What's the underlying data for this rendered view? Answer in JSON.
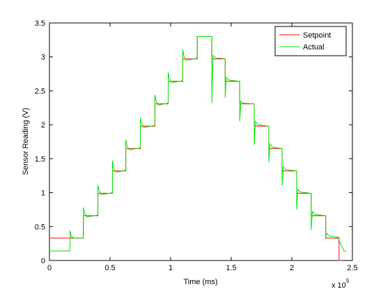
{
  "chart_data": {
    "type": "line",
    "xlabel": "Time (ms)",
    "ylabel": "Sensor Reading (V)",
    "x_exponent_base": "x 10",
    "x_exponent": "5",
    "xlim": [
      0,
      250000
    ],
    "xticks": [
      0,
      {
        "value": 50000,
        "label": "0.5"
      },
      {
        "value": 100000,
        "label": "1"
      },
      {
        "value": 150000,
        "label": "1.5"
      },
      {
        "value": 200000,
        "label": "2"
      },
      {
        "value": 250000,
        "label": "2.5"
      }
    ],
    "ylim": [
      0,
      3.5
    ],
    "yticks": [
      0,
      0.5,
      1,
      1.5,
      2,
      2.5,
      3,
      3.5
    ],
    "grid": false,
    "legend": "upper-right",
    "series": [
      {
        "name": "Setpoint",
        "color": "#ff0000",
        "x": [
          0,
          28000,
          28000,
          40000,
          40000,
          52000,
          52000,
          63000,
          63000,
          75000,
          75000,
          87000,
          87000,
          98000,
          98000,
          110000,
          110000,
          122000,
          122000,
          134000,
          134000,
          145000,
          145000,
          157000,
          157000,
          169000,
          169000,
          181000,
          181000,
          192000,
          192000,
          204000,
          204000,
          216000,
          216000,
          228000,
          228000,
          239000,
          239000,
          241000
        ],
        "values": [
          0.33,
          0.33,
          0.66,
          0.66,
          0.99,
          0.99,
          1.32,
          1.32,
          1.65,
          1.65,
          1.98,
          1.98,
          2.31,
          2.31,
          2.64,
          2.64,
          2.97,
          2.97,
          3.3,
          3.3,
          2.97,
          2.97,
          2.64,
          2.64,
          2.31,
          2.31,
          1.98,
          1.98,
          1.65,
          1.65,
          1.32,
          1.32,
          0.99,
          0.99,
          0.66,
          0.66,
          0.33,
          0.33,
          0,
          0
        ]
      },
      {
        "name": "Actual",
        "color": "#00e600",
        "x": [
          0,
          17000,
          17000,
          18000,
          20000,
          28000,
          28000,
          29000,
          31000,
          40000,
          40000,
          41000,
          43000,
          52000,
          52000,
          53000,
          55000,
          63000,
          63000,
          64000,
          66000,
          75000,
          75000,
          76000,
          78000,
          87000,
          87000,
          88000,
          90000,
          98000,
          98000,
          99000,
          101000,
          110000,
          110000,
          111000,
          113000,
          122000,
          122000,
          134000,
          134000,
          135000,
          137000,
          145000,
          145000,
          146000,
          148000,
          157000,
          157000,
          158000,
          160000,
          169000,
          169000,
          170000,
          172000,
          181000,
          181000,
          182000,
          184000,
          192000,
          192000,
          193000,
          195000,
          204000,
          204000,
          205000,
          207000,
          216000,
          216000,
          217000,
          219000,
          228000,
          228000,
          229000,
          231000,
          239000,
          239000,
          243000,
          245000
        ],
        "values": [
          0.14,
          0.14,
          0.44,
          0.36,
          0.33,
          0.33,
          0.78,
          0.7,
          0.64,
          0.67,
          1.11,
          1.03,
          0.97,
          1.0,
          1.47,
          1.36,
          1.3,
          1.33,
          1.78,
          1.69,
          1.63,
          1.66,
          2.1,
          2.02,
          1.96,
          1.99,
          2.44,
          2.35,
          2.29,
          2.32,
          2.77,
          2.68,
          2.62,
          2.65,
          3.11,
          3.01,
          2.95,
          2.98,
          3.3,
          3.3,
          2.32,
          3.02,
          2.99,
          2.97,
          2.4,
          2.7,
          2.66,
          2.64,
          2.05,
          2.35,
          2.32,
          2.31,
          1.7,
          2.05,
          2.0,
          1.98,
          1.45,
          1.72,
          1.67,
          1.65,
          1.1,
          1.38,
          1.34,
          1.32,
          0.75,
          1.05,
          1.01,
          0.99,
          0.45,
          0.72,
          0.68,
          0.66,
          0.35,
          0.4,
          0.36,
          0.34,
          0.3,
          0.14,
          0.14
        ]
      }
    ]
  }
}
